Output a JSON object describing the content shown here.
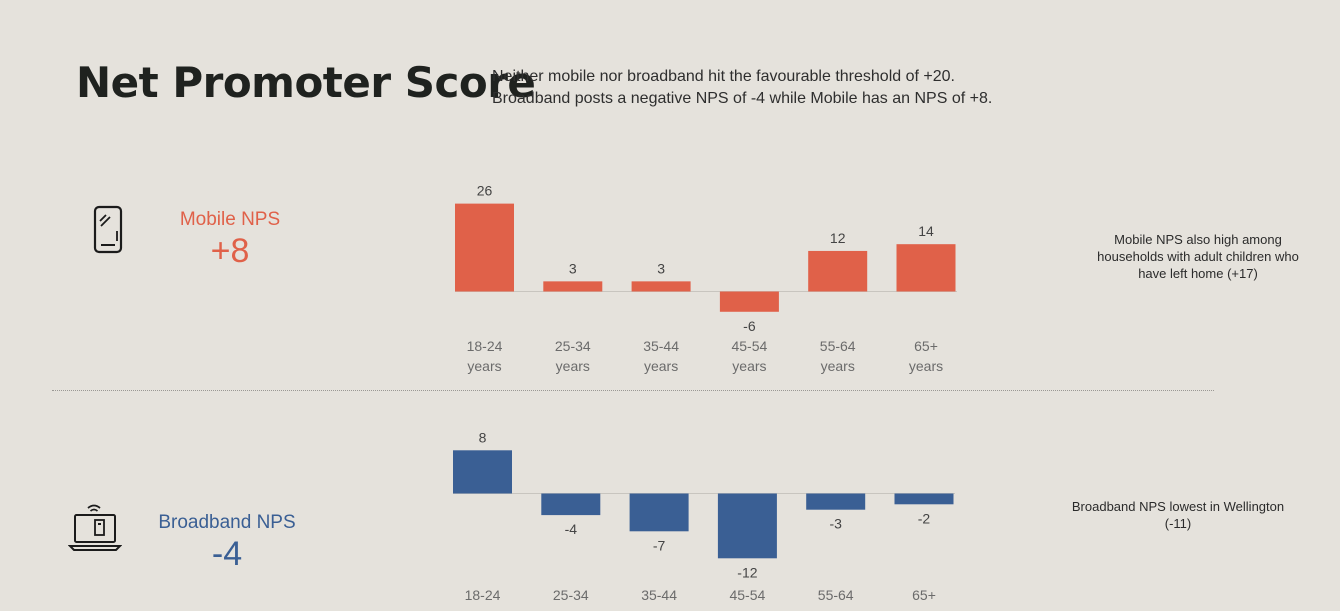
{
  "title": "Net Promoter Score",
  "subtitle": [
    "Neither mobile nor broadband hit the favourable threshold of +20.",
    "Broadband posts a negative NPS of -4 while Mobile has an NPS of +8."
  ],
  "mobile": {
    "label": "Mobile NPS",
    "value": "+8",
    "icon": "smartphone-icon",
    "color": "#e06149",
    "note": "Mobile NPS also high among households with adult children who have left home  (+17)"
  },
  "broadband": {
    "label": "Broadband NPS",
    "value": "-4",
    "icon": "laptop-wifi-icon",
    "color": "#3a5f94",
    "note": "Broadband NPS lowest in Wellington (-11)"
  },
  "chart_data": [
    {
      "type": "bar",
      "categories": [
        [
          "18-24",
          "years"
        ],
        [
          "25-34",
          "years"
        ],
        [
          "35-44",
          "years"
        ],
        [
          "45-54",
          "years"
        ],
        [
          "55-64",
          "years"
        ],
        [
          "65+",
          "years"
        ]
      ],
      "values": [
        26,
        3,
        3,
        -6,
        12,
        14
      ],
      "color": "#e06149",
      "grid": false
    },
    {
      "type": "bar",
      "categories": [
        [
          "18-24"
        ],
        [
          "25-34"
        ],
        [
          "35-44"
        ],
        [
          "45-54"
        ],
        [
          "55-64"
        ],
        [
          "65+"
        ]
      ],
      "values": [
        8,
        -4,
        -7,
        -12,
        -3,
        -2
      ],
      "color": "#3a5f94",
      "grid": false
    }
  ]
}
